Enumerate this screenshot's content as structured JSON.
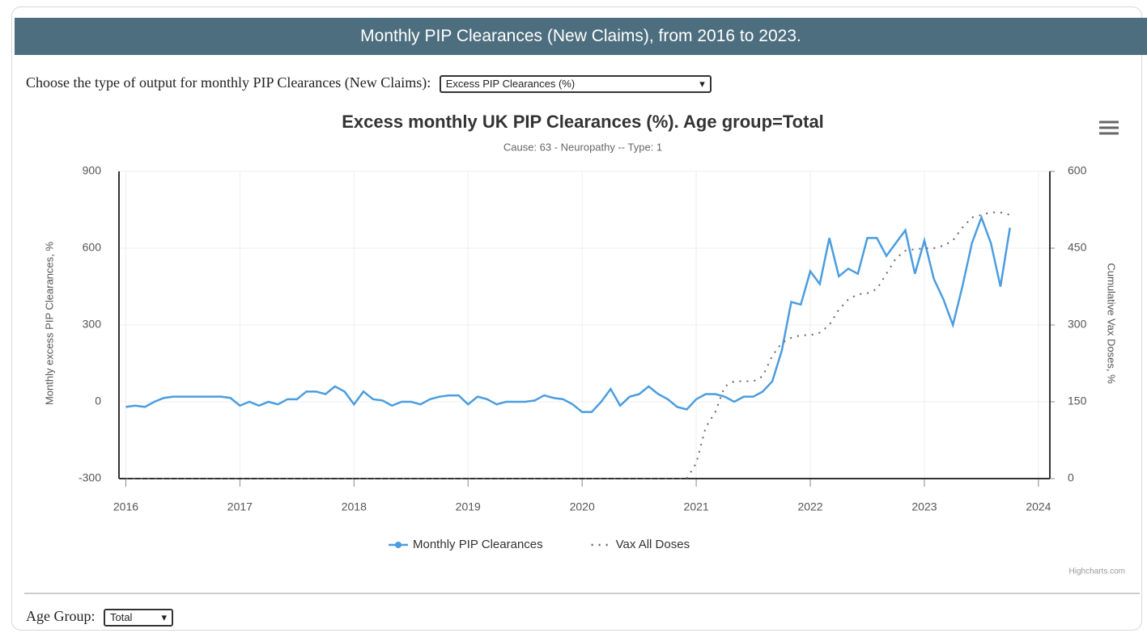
{
  "header": {
    "title": "Monthly PIP Clearances (New Claims), from 2016 to 2023."
  },
  "controls": {
    "output_label": "Choose the type of output for monthly PIP Clearances (New Claims):",
    "output_selected": "Excess PIP Clearances (%)",
    "age_label": "Age Group:",
    "age_selected": "Total"
  },
  "credits": "Highcharts.com",
  "chart_data": {
    "type": "line",
    "title": "Excess monthly UK PIP Clearances (%). Age group=Total",
    "subtitle": "Cause: 63 - Neuropathy -- Type: 1",
    "y_label": "Monthly excess PIP Clearances, %",
    "y2_label": "Cumulative Vax Doses, %",
    "xlim": [
      2015.94,
      2024.1
    ],
    "xticks": [
      2016,
      2017,
      2018,
      2019,
      2020,
      2021,
      2022,
      2023,
      2024
    ],
    "ylim": [
      -300,
      900
    ],
    "yticks": [
      -300,
      0,
      300,
      600,
      900
    ],
    "y2lim": [
      0,
      600
    ],
    "y2ticks": [
      0,
      150,
      300,
      450,
      600
    ],
    "grid": true,
    "series": [
      {
        "name": "Monthly PIP Clearances",
        "color": "#4a9de0",
        "dash": "solid",
        "x": [
          2016,
          2016.083,
          2016.167,
          2016.25,
          2016.333,
          2016.417,
          2016.5,
          2016.583,
          2016.667,
          2016.75,
          2016.833,
          2016.917,
          2017,
          2017.083,
          2017.167,
          2017.25,
          2017.333,
          2017.417,
          2017.5,
          2017.583,
          2017.667,
          2017.75,
          2017.833,
          2017.917,
          2018,
          2018.083,
          2018.167,
          2018.25,
          2018.333,
          2018.417,
          2018.5,
          2018.583,
          2018.667,
          2018.75,
          2018.833,
          2018.917,
          2019,
          2019.083,
          2019.167,
          2019.25,
          2019.333,
          2019.417,
          2019.5,
          2019.583,
          2019.667,
          2019.75,
          2019.833,
          2019.917,
          2020,
          2020.083,
          2020.167,
          2020.25,
          2020.333,
          2020.417,
          2020.5,
          2020.583,
          2020.667,
          2020.75,
          2020.833,
          2020.917,
          2021,
          2021.083,
          2021.167,
          2021.25,
          2021.333,
          2021.417,
          2021.5,
          2021.583,
          2021.667,
          2021.75,
          2021.833,
          2021.917,
          2022,
          2022.083,
          2022.167,
          2022.25,
          2022.333,
          2022.417,
          2022.5,
          2022.583,
          2022.667,
          2022.75,
          2022.833,
          2022.917,
          2023,
          2023.083,
          2023.167,
          2023.25,
          2023.333,
          2023.417,
          2023.5,
          2023.583,
          2023.667,
          2023.75
        ],
        "values": [
          -20,
          -15,
          -20,
          0,
          15,
          20,
          20,
          20,
          20,
          20,
          20,
          15,
          -15,
          0,
          -15,
          0,
          -10,
          10,
          10,
          40,
          40,
          30,
          60,
          40,
          -10,
          40,
          10,
          5,
          -15,
          0,
          0,
          -10,
          10,
          20,
          25,
          25,
          -10,
          20,
          10,
          -10,
          0,
          0,
          0,
          5,
          25,
          15,
          10,
          -10,
          -40,
          -40,
          0,
          50,
          -15,
          20,
          30,
          60,
          30,
          10,
          -20,
          -30,
          10,
          30,
          30,
          20,
          0,
          20,
          20,
          40,
          80,
          200,
          390,
          380,
          510,
          460,
          640,
          490,
          520,
          500,
          640,
          640,
          570,
          620,
          670,
          500,
          630,
          480,
          400,
          300,
          450,
          620,
          720,
          620,
          450,
          680
        ]
      },
      {
        "name": "Vax All Doses",
        "color": "#666666",
        "dash": "dotted",
        "axis": "y2",
        "x": [
          2016,
          2020.917,
          2021,
          2021.083,
          2021.167,
          2021.25,
          2021.333,
          2021.417,
          2021.5,
          2021.583,
          2021.667,
          2021.75,
          2021.833,
          2021.917,
          2022,
          2022.083,
          2022.167,
          2022.25,
          2022.333,
          2022.417,
          2022.5,
          2022.583,
          2022.667,
          2022.75,
          2022.833,
          2022.917,
          2023,
          2023.083,
          2023.167,
          2023.25,
          2023.333,
          2023.417,
          2023.5,
          2023.583,
          2023.667,
          2023.75
        ],
        "values": [
          0,
          0,
          30,
          100,
          130,
          180,
          190,
          190,
          190,
          200,
          240,
          265,
          275,
          280,
          280,
          285,
          300,
          330,
          350,
          360,
          362,
          370,
          400,
          430,
          445,
          448,
          450,
          450,
          455,
          465,
          490,
          510,
          515,
          520,
          520,
          515
        ]
      }
    ]
  }
}
